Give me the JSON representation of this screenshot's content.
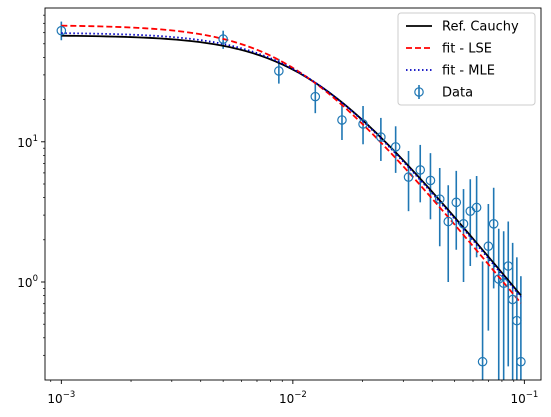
{
  "chart_data": {
    "type": "scatter",
    "title": "",
    "xlabel": "",
    "ylabel": "",
    "xscale": "log",
    "yscale": "log",
    "xlim": [
      0.00085,
      0.118
    ],
    "ylim": [
      0.2,
      90
    ],
    "x_ticks": [
      {
        "value": 0.001,
        "label": "10",
        "exp": "−3"
      },
      {
        "value": 0.01,
        "label": "10",
        "exp": "−2"
      },
      {
        "value": 0.1,
        "label": "10",
        "exp": "−1"
      }
    ],
    "y_ticks": [
      {
        "value": 1,
        "label": "10",
        "exp": "0"
      },
      {
        "value": 10,
        "label": "10",
        "exp": "1"
      }
    ],
    "grid": false,
    "legend_position": "top-right",
    "series": [
      {
        "name": "Ref. Cauchy",
        "kind": "line",
        "style": "solid",
        "color": "#000000",
        "amplitude": 57.5,
        "scale": 0.0115,
        "samples": 60
      },
      {
        "name": "fit - LSE",
        "kind": "line",
        "style": "dashed",
        "color": "#ff0000",
        "amplitude": 68.0,
        "scale": 0.0099,
        "samples": 60
      },
      {
        "name": "fit - MLE",
        "kind": "line",
        "style": "dotted",
        "color": "#0000bf",
        "amplitude": 60.0,
        "scale": 0.0111,
        "samples": 60
      },
      {
        "name": "Data",
        "kind": "errorbar",
        "color": "#1f77b4",
        "points": [
          {
            "x": 0.001,
            "y": 62,
            "ylo": 53,
            "yhi": 72
          },
          {
            "x": 0.005,
            "y": 54,
            "ylo": 46,
            "yhi": 62
          },
          {
            "x": 0.0087,
            "y": 32,
            "ylo": 26,
            "yhi": 39
          },
          {
            "x": 0.0125,
            "y": 21,
            "ylo": 16,
            "yhi": 26
          },
          {
            "x": 0.0163,
            "y": 14.3,
            "ylo": 10.3,
            "yhi": 19
          },
          {
            "x": 0.0201,
            "y": 13.4,
            "ylo": 9.6,
            "yhi": 18
          },
          {
            "x": 0.024,
            "y": 10.8,
            "ylo": 7.3,
            "yhi": 14.8
          },
          {
            "x": 0.0278,
            "y": 9.2,
            "ylo": 6.0,
            "yhi": 12.9
          },
          {
            "x": 0.0316,
            "y": 5.6,
            "ylo": 3.2,
            "yhi": 8.6
          },
          {
            "x": 0.0355,
            "y": 6.3,
            "ylo": 3.7,
            "yhi": 9.5
          },
          {
            "x": 0.0393,
            "y": 5.3,
            "ylo": 2.8,
            "yhi": 8.3
          },
          {
            "x": 0.0431,
            "y": 3.9,
            "ylo": 1.8,
            "yhi": 6.5
          },
          {
            "x": 0.0469,
            "y": 2.7,
            "ylo": 1.0,
            "yhi": 4.9
          },
          {
            "x": 0.0508,
            "y": 3.7,
            "ylo": 1.7,
            "yhi": 6.2
          },
          {
            "x": 0.0546,
            "y": 2.6,
            "ylo": 1.0,
            "yhi": 4.6
          },
          {
            "x": 0.0584,
            "y": 3.2,
            "ylo": 1.3,
            "yhi": 5.4
          },
          {
            "x": 0.0622,
            "y": 3.4,
            "ylo": 1.5,
            "yhi": 5.7
          },
          {
            "x": 0.066,
            "y": 0.27,
            "ylo": 0.2,
            "yhi": 1.4
          },
          {
            "x": 0.0699,
            "y": 1.8,
            "ylo": 0.45,
            "yhi": 3.6
          },
          {
            "x": 0.0737,
            "y": 2.6,
            "ylo": 0.9,
            "yhi": 4.7
          },
          {
            "x": 0.0775,
            "y": 1.05,
            "ylo": 0.2,
            "yhi": 2.4
          },
          {
            "x": 0.0814,
            "y": 0.98,
            "ylo": 0.2,
            "yhi": 2.3
          },
          {
            "x": 0.0852,
            "y": 1.3,
            "ylo": 0.25,
            "yhi": 2.7
          },
          {
            "x": 0.089,
            "y": 0.75,
            "ylo": 0.2,
            "yhi": 1.9
          },
          {
            "x": 0.0928,
            "y": 0.53,
            "ylo": 0.2,
            "yhi": 1.5
          },
          {
            "x": 0.0966,
            "y": 0.27,
            "ylo": 0.2,
            "yhi": 1.1
          }
        ]
      }
    ]
  }
}
